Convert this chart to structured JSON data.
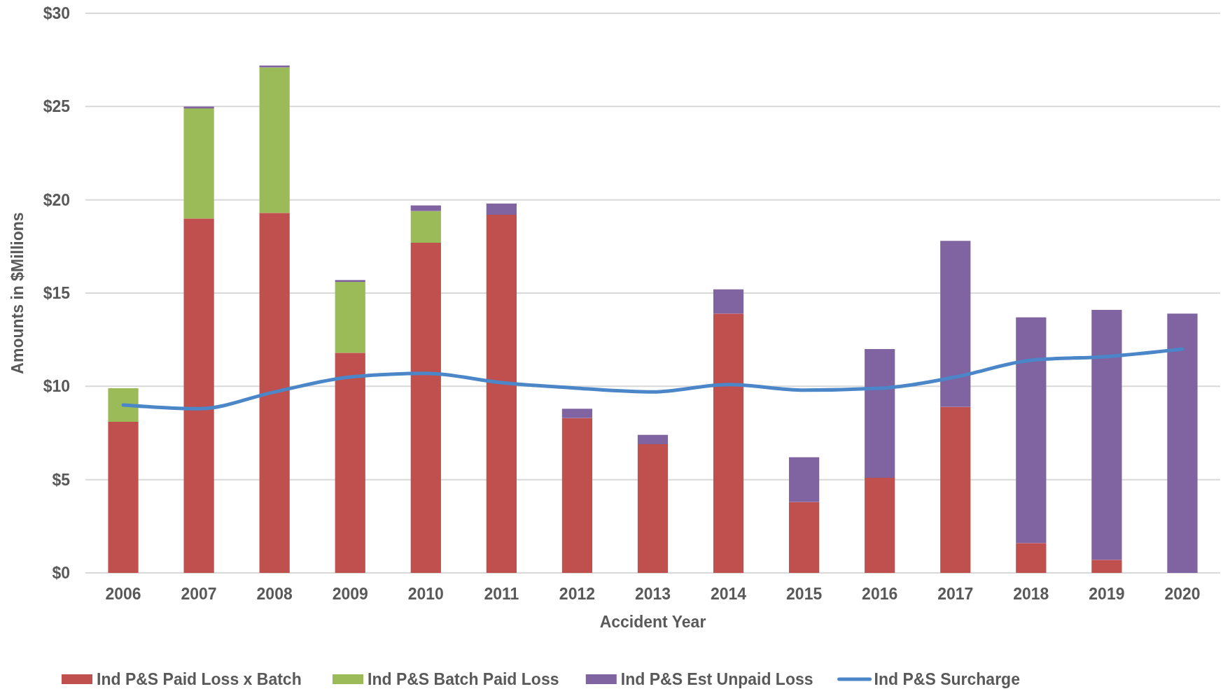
{
  "chart_data": {
    "type": "bar",
    "stacked": true,
    "xlabel": "Accident Year",
    "ylabel": "Amounts in $Millions",
    "categories": [
      "2006",
      "2007",
      "2008",
      "2009",
      "2010",
      "2011",
      "2012",
      "2013",
      "2014",
      "2015",
      "2016",
      "2017",
      "2018",
      "2019",
      "2020"
    ],
    "series": [
      {
        "name": "Ind P&S Paid Loss x Batch",
        "color": "#c0504d",
        "values": [
          8.1,
          19.0,
          19.3,
          11.8,
          17.7,
          19.2,
          8.3,
          6.9,
          13.9,
          3.8,
          5.1,
          8.9,
          1.6,
          0.7,
          0
        ]
      },
      {
        "name": "Ind P&S Batch Paid Loss",
        "color": "#9bbb59",
        "values": [
          1.8,
          5.9,
          7.8,
          3.8,
          1.7,
          0,
          0,
          0,
          0,
          0,
          0,
          0,
          0,
          0,
          0
        ]
      },
      {
        "name": "Ind P&S Est Unpaid Loss",
        "color": "#8064a2",
        "values": [
          0,
          0.1,
          0.1,
          0.1,
          0.3,
          0.6,
          0.5,
          0.5,
          1.3,
          2.4,
          6.9,
          8.9,
          12.1,
          13.4,
          13.9
        ]
      },
      {
        "name": "Ind P&S Surcharge",
        "type": "line",
        "color": "#4a86c8",
        "values": [
          9.0,
          8.8,
          9.7,
          10.5,
          10.7,
          10.2,
          9.9,
          9.7,
          10.1,
          9.8,
          9.9,
          10.5,
          11.4,
          11.6,
          12.0
        ]
      }
    ],
    "ylim": [
      0,
      30
    ],
    "yticks": [
      {
        "value": 0,
        "label": "$0"
      },
      {
        "value": 5,
        "label": "$5"
      },
      {
        "value": 10,
        "label": "$10"
      },
      {
        "value": 15,
        "label": "$15"
      },
      {
        "value": 20,
        "label": "$20"
      },
      {
        "value": 25,
        "label": "$25"
      },
      {
        "value": 30,
        "label": "$30"
      }
    ],
    "grid": "y",
    "legend": "bottom",
    "marker": "none",
    "line_style": "solid"
  }
}
